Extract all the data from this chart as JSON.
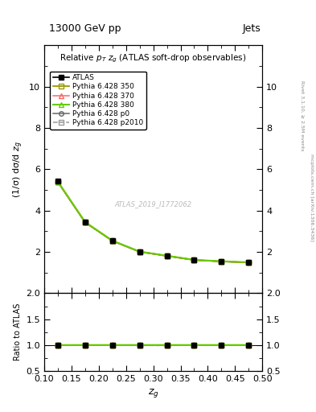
{
  "title_top": "13000 GeV pp",
  "title_right": "Jets",
  "plot_title": "Relative $p_T$ $z_g$ (ATLAS soft-drop observables)",
  "xlabel": "$z_g$",
  "ylabel_main": "(1/σ) dσ/d $z_g$",
  "ylabel_ratio": "Ratio to ATLAS",
  "watermark": "ATLAS_2019_I1772062",
  "right_label_top": "Rivet 3.1.10, ≥ 2.5M events",
  "right_label_bot": "mcplots.cern.ch [arXiv:1306.3436]",
  "xdata": [
    0.125,
    0.175,
    0.225,
    0.275,
    0.325,
    0.375,
    0.425,
    0.475
  ],
  "atlas_y": [
    5.42,
    3.45,
    2.55,
    2.02,
    1.82,
    1.62,
    1.55,
    1.5
  ],
  "atlas_yerr": [
    0.06,
    0.04,
    0.03,
    0.02,
    0.02,
    0.02,
    0.02,
    0.02
  ],
  "pythia350_y": [
    5.38,
    3.43,
    2.54,
    2.01,
    1.81,
    1.61,
    1.54,
    1.49
  ],
  "pythia370_y": [
    5.4,
    3.44,
    2.54,
    2.02,
    1.81,
    1.62,
    1.54,
    1.49
  ],
  "pythia380_y": [
    5.41,
    3.45,
    2.55,
    2.02,
    1.82,
    1.62,
    1.55,
    1.5
  ],
  "pythiap0_y": [
    5.39,
    3.43,
    2.54,
    2.01,
    1.81,
    1.61,
    1.54,
    1.49
  ],
  "pythiap2010_y": [
    5.38,
    3.43,
    2.53,
    2.0,
    1.8,
    1.61,
    1.54,
    1.49
  ],
  "color_atlas": "#000000",
  "color_350": "#999900",
  "color_370": "#ff6666",
  "color_380": "#66cc00",
  "color_p0": "#666666",
  "color_p2010": "#999999",
  "xlim": [
    0.1,
    0.5
  ],
  "ylim_main": [
    0,
    12
  ],
  "ylim_ratio": [
    0.5,
    2.0
  ],
  "yticks_main": [
    2,
    4,
    6,
    8,
    10
  ],
  "yticks_ratio": [
    0.5,
    1.0,
    1.5,
    2.0
  ]
}
